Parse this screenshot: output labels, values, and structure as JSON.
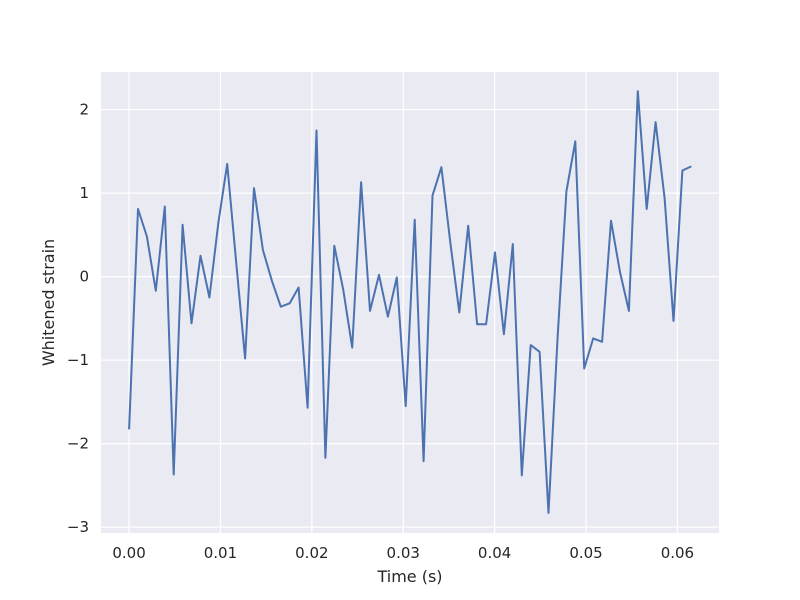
{
  "chart_data": {
    "type": "line",
    "title": "",
    "xlabel": "Time (s)",
    "ylabel": "Whitened strain",
    "xlim": [
      -0.00307,
      0.06455
    ],
    "ylim": [
      -3.07,
      2.45
    ],
    "xticks": [
      0.0,
      0.01,
      0.02,
      0.03,
      0.04,
      0.05,
      0.06
    ],
    "xtick_labels": [
      "0.00",
      "0.01",
      "0.02",
      "0.03",
      "0.04",
      "0.05",
      "0.06"
    ],
    "yticks": [
      -3,
      -2,
      -1,
      0,
      1,
      2
    ],
    "ytick_labels": [
      "−3",
      "−2",
      "−1",
      "0",
      "1",
      "2"
    ],
    "grid": true,
    "background": "#eaeaf2",
    "grid_color": "#ffffff",
    "line_color": "#4c72b0",
    "series": [
      {
        "name": "",
        "x": [
          0.0,
          0.000977,
          0.001953,
          0.00293,
          0.003906,
          0.004883,
          0.005859,
          0.006836,
          0.007813,
          0.008789,
          0.009766,
          0.010742,
          0.011719,
          0.012695,
          0.013672,
          0.014648,
          0.015625,
          0.016602,
          0.017578,
          0.018555,
          0.019531,
          0.020508,
          0.021484,
          0.022461,
          0.023438,
          0.024414,
          0.025391,
          0.026367,
          0.027344,
          0.02832,
          0.029297,
          0.030273,
          0.03125,
          0.032227,
          0.033203,
          0.03418,
          0.035156,
          0.036133,
          0.037109,
          0.038086,
          0.039063,
          0.040039,
          0.041016,
          0.041992,
          0.042969,
          0.043945,
          0.044922,
          0.045898,
          0.046875,
          0.047852,
          0.048828,
          0.049805,
          0.050781,
          0.051758,
          0.052734,
          0.053711,
          0.054688,
          0.055664,
          0.056641,
          0.057617,
          0.058594,
          0.05957,
          0.060547,
          0.061523
        ],
        "y": [
          -1.83,
          0.81,
          0.48,
          -0.17,
          0.84,
          -2.37,
          0.62,
          -0.56,
          0.25,
          -0.25,
          0.64,
          1.35,
          0.17,
          -0.98,
          1.06,
          0.32,
          -0.05,
          -0.36,
          -0.32,
          -0.13,
          -1.57,
          1.75,
          -2.17,
          0.37,
          -0.16,
          -0.85,
          1.13,
          -0.41,
          0.02,
          -0.48,
          -0.01,
          -1.55,
          0.68,
          -2.21,
          0.97,
          1.31,
          0.4,
          -0.43,
          0.61,
          -0.57,
          -0.57,
          0.29,
          -0.69,
          0.39,
          -2.38,
          -0.82,
          -0.9,
          -2.83,
          -0.75,
          1.02,
          1.62,
          -1.1,
          -0.74,
          -0.78,
          0.67,
          0.06,
          -0.41,
          2.22,
          0.81,
          1.85,
          0.94,
          -0.53,
          1.27,
          1.32
        ]
      }
    ]
  }
}
